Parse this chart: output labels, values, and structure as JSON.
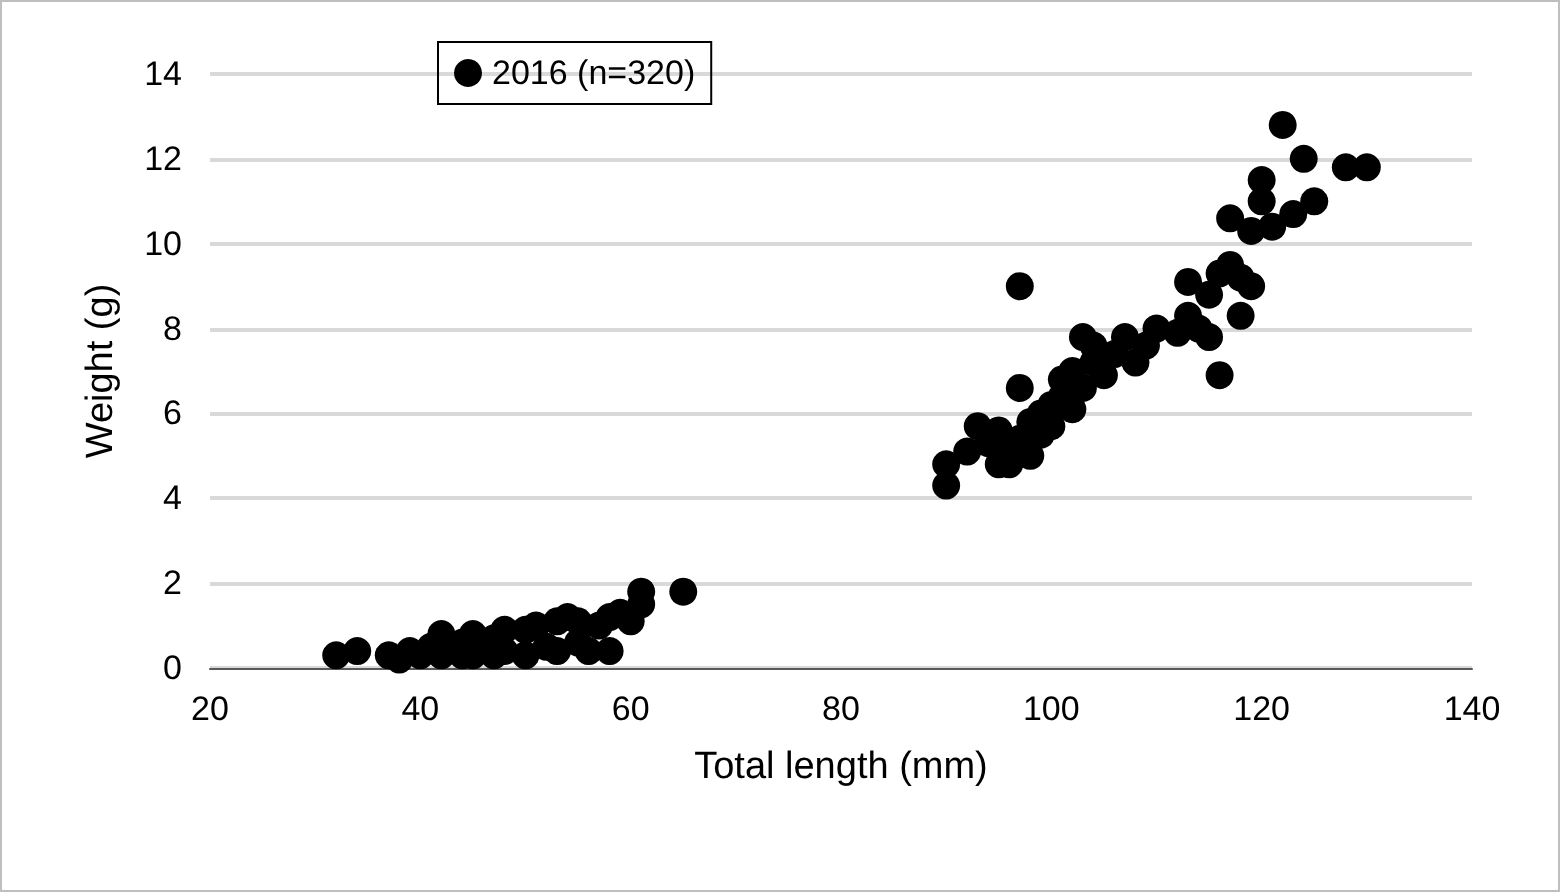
{
  "chart_data": {
    "type": "scatter",
    "xlabel": "Total length (mm)",
    "ylabel": "Weight (g)",
    "xlim": [
      20,
      140
    ],
    "xticks": [
      20,
      40,
      60,
      80,
      100,
      120,
      140
    ],
    "ylim": [
      0,
      14
    ],
    "yticks": [
      0,
      2,
      4,
      6,
      8,
      10,
      12,
      14
    ],
    "grid": "y",
    "legend": "top left",
    "marker": "circle",
    "series": [
      {
        "name": "2016 (n=320)",
        "color": "#000000",
        "x": [
          32,
          34,
          37,
          38,
          39,
          40,
          41,
          42,
          42,
          44,
          45,
          45,
          47,
          47,
          48,
          48,
          50,
          50,
          51,
          52,
          53,
          53,
          54,
          55,
          55,
          56,
          57,
          58,
          58,
          59,
          60,
          61,
          61,
          65,
          44,
          90,
          90,
          92,
          93,
          94,
          95,
          95,
          96,
          96,
          97,
          97,
          97,
          98,
          98,
          99,
          99,
          100,
          100,
          101,
          101,
          102,
          102,
          103,
          103,
          104,
          104,
          105,
          106,
          107,
          108,
          109,
          110,
          112,
          113,
          113,
          114,
          115,
          115,
          116,
          116,
          117,
          117,
          118,
          118,
          119,
          119,
          120,
          120,
          121,
          122,
          123,
          124,
          125,
          128,
          130
        ],
        "values": [
          0.3,
          0.4,
          0.3,
          0.2,
          0.4,
          0.3,
          0.5,
          0.8,
          0.3,
          0.6,
          0.8,
          0.3,
          0.7,
          0.3,
          0.9,
          0.4,
          0.9,
          0.3,
          1.0,
          0.5,
          1.1,
          0.4,
          1.2,
          0.6,
          1.1,
          0.4,
          1.0,
          1.2,
          0.4,
          1.3,
          1.1,
          1.8,
          1.5,
          1.8,
          0.3,
          4.3,
          4.8,
          5.1,
          5.7,
          5.3,
          4.8,
          5.6,
          5.1,
          4.8,
          9.0,
          6.6,
          5.4,
          5.0,
          5.8,
          5.5,
          6.0,
          6.2,
          5.7,
          6.4,
          6.8,
          6.1,
          7.0,
          7.8,
          6.6,
          7.2,
          7.6,
          6.9,
          7.4,
          7.8,
          7.2,
          7.6,
          8.0,
          7.9,
          8.3,
          9.1,
          8.0,
          7.8,
          8.8,
          6.9,
          9.3,
          10.6,
          9.5,
          8.3,
          9.2,
          10.3,
          9.0,
          11.0,
          11.5,
          10.4,
          12.8,
          10.7,
          12.0,
          11.0,
          11.8,
          11.8
        ]
      }
    ]
  }
}
